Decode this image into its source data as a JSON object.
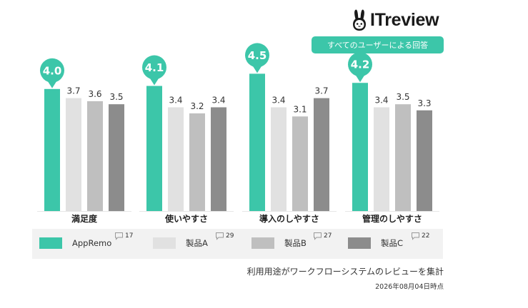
{
  "brand": {
    "name": "ITreview",
    "logo_icon": "rabbit-icon"
  },
  "scope_label": "すべてのユーザーによる回答",
  "chart_data": {
    "type": "bar",
    "categories": [
      "満足度",
      "使いやすさ",
      "導入のしやすさ",
      "管理のしやすさ"
    ],
    "ylim": [
      0,
      5
    ],
    "grid": false,
    "legend_position": "bottom",
    "series": [
      {
        "name": "AppRemo",
        "values": [
          4.0,
          4.1,
          4.5,
          4.2
        ],
        "color": "#3cc6a9",
        "count": "17",
        "highlight": true
      },
      {
        "name": "製品A",
        "values": [
          3.7,
          3.4,
          3.4,
          3.4
        ],
        "color": "#e1e1e1",
        "count": "29"
      },
      {
        "name": "製品B",
        "values": [
          3.6,
          3.2,
          3.1,
          3.5
        ],
        "color": "#bfbfbf",
        "count": "27"
      },
      {
        "name": "製品C",
        "values": [
          3.5,
          3.4,
          3.7,
          3.3
        ],
        "color": "#8c8c8c",
        "count": "22"
      }
    ]
  },
  "footnote": "利用用途がワークフローシステムのレビューを集計",
  "as_of": "2026年08月04日時点"
}
